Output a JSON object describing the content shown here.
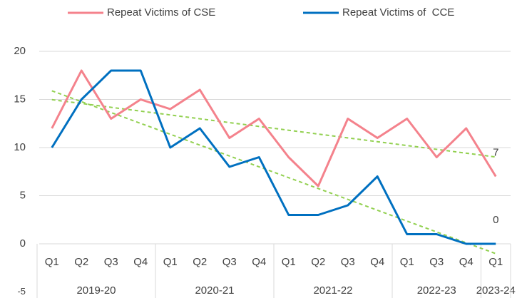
{
  "chart_data": {
    "type": "line",
    "category_groups": [
      {
        "label": "2019-20",
        "quarters": [
          "Q1",
          "Q2",
          "Q3",
          "Q4"
        ]
      },
      {
        "label": "2020-21",
        "quarters": [
          "Q1",
          "Q2",
          "Q3",
          "Q4"
        ]
      },
      {
        "label": "2021-22",
        "quarters": [
          "Q1",
          "Q2",
          "Q3",
          "Q4"
        ]
      },
      {
        "label": "2022-23",
        "quarters": [
          "Q1",
          "Q3",
          "Q4"
        ]
      },
      {
        "label": "2023-24",
        "quarters": [
          "Q1"
        ]
      }
    ],
    "series": [
      {
        "name": "Repeat Victims of CSE",
        "color": "#f4828c",
        "values": [
          12,
          18,
          13,
          15,
          14,
          16,
          11,
          13,
          9,
          6,
          13,
          11,
          13,
          9,
          12,
          7
        ],
        "trendline": true,
        "label_last": true
      },
      {
        "name": "Repeat Victims of  CCE",
        "color": "#0070c0",
        "values": [
          10,
          15,
          18,
          18,
          10,
          12,
          8,
          9,
          3,
          3,
          4,
          7,
          1,
          1,
          0,
          0
        ],
        "trendline": true,
        "label_last": true
      }
    ],
    "trend_color": "#92d050",
    "ylim": [
      -5,
      20
    ],
    "yticks": [
      -5,
      0,
      5,
      10,
      15,
      20
    ],
    "grid": true,
    "legend": "top"
  }
}
